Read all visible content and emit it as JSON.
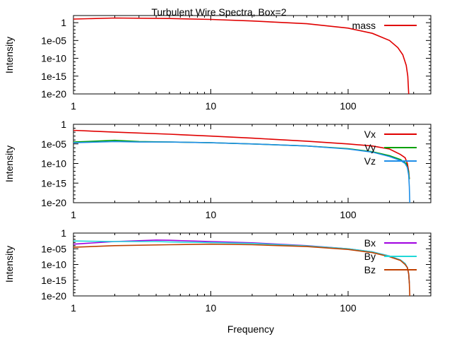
{
  "chart_data": [
    {
      "type": "line",
      "title": "Turbulent Wire Spectra, Box=2",
      "xlabel": "",
      "ylabel": "Intensity",
      "xscale": "log",
      "yscale": "log",
      "xlim": [
        1,
        400
      ],
      "ylim": [
        1e-20,
        100
      ],
      "xticks": [
        {
          "value": 1,
          "label": "1"
        },
        {
          "value": 10,
          "label": "10"
        },
        {
          "value": 100,
          "label": "100"
        }
      ],
      "yticks": [
        {
          "value": 1,
          "label": "1"
        },
        {
          "value": 1e-05,
          "label": "1e-05"
        },
        {
          "value": 1e-10,
          "label": "1e-10"
        },
        {
          "value": 1e-15,
          "label": "1e-15"
        },
        {
          "value": 1e-20,
          "label": "1e-20"
        }
      ],
      "legend_position": "top-right",
      "grid": false,
      "series": [
        {
          "name": "mass",
          "color": "#e00000",
          "points": [
            [
              1,
              10
            ],
            [
              2,
              20
            ],
            [
              5,
              15
            ],
            [
              10,
              8
            ],
            [
              20,
              3
            ],
            [
              50,
              0.5
            ],
            [
              100,
              0.03
            ],
            [
              150,
              0.001
            ],
            [
              200,
              1e-05
            ],
            [
              230,
              1e-07
            ],
            [
              250,
              1e-09
            ],
            [
              265,
              1e-12
            ],
            [
              272,
              1e-15
            ],
            [
              276,
              1e-20
            ]
          ]
        }
      ]
    },
    {
      "type": "line",
      "title": "",
      "xlabel": "",
      "ylabel": "Intensity",
      "xscale": "log",
      "yscale": "log",
      "xlim": [
        1,
        400
      ],
      "ylim": [
        1e-20,
        1
      ],
      "xticks": [
        {
          "value": 1,
          "label": "1"
        },
        {
          "value": 10,
          "label": "10"
        },
        {
          "value": 100,
          "label": "100"
        }
      ],
      "yticks": [
        {
          "value": 1,
          "label": "1"
        },
        {
          "value": 1e-05,
          "label": "1e-05"
        },
        {
          "value": 1e-10,
          "label": "1e-10"
        },
        {
          "value": 1e-15,
          "label": "1e-15"
        },
        {
          "value": 1e-20,
          "label": "1e-20"
        }
      ],
      "legend_position": "top-right",
      "grid": false,
      "series": [
        {
          "name": "Vx",
          "color": "#e00000",
          "points": [
            [
              1,
              0.03
            ],
            [
              2,
              0.01
            ],
            [
              5,
              0.003
            ],
            [
              10,
              0.001
            ],
            [
              20,
              0.0003
            ],
            [
              50,
              5e-05
            ],
            [
              100,
              1e-05
            ],
            [
              150,
              3e-06
            ],
            [
              200,
              5e-07
            ],
            [
              240,
              2e-08
            ],
            [
              260,
              3e-09
            ],
            [
              270,
              1e-10
            ],
            [
              276,
              1e-12
            ],
            [
              279,
              1e-14
            ]
          ]
        },
        {
          "name": "Vy",
          "color": "#00a000",
          "points": [
            [
              1,
              3e-05
            ],
            [
              2,
              8e-05
            ],
            [
              3,
              4e-05
            ],
            [
              5,
              3e-05
            ],
            [
              10,
              2e-05
            ],
            [
              20,
              1e-05
            ],
            [
              50,
              3e-06
            ],
            [
              100,
              6e-07
            ],
            [
              150,
              1e-07
            ],
            [
              200,
              1e-08
            ],
            [
              240,
              1e-09
            ],
            [
              265,
              1e-10
            ],
            [
              275,
              1e-12
            ],
            [
              279,
              1e-14
            ]
          ]
        },
        {
          "name": "Vz",
          "color": "#1e8ee8",
          "points": [
            [
              1,
              2e-05
            ],
            [
              2,
              4e-05
            ],
            [
              3,
              3e-05
            ],
            [
              5,
              3e-05
            ],
            [
              10,
              2e-05
            ],
            [
              20,
              1e-05
            ],
            [
              50,
              3e-06
            ],
            [
              100,
              5e-07
            ],
            [
              150,
              8e-08
            ],
            [
              200,
              6e-09
            ],
            [
              240,
              6e-10
            ],
            [
              260,
              1e-10
            ],
            [
              270,
              1e-11
            ],
            [
              276,
              1e-13
            ],
            [
              279,
              1e-16
            ],
            [
              281,
              1e-20
            ]
          ]
        }
      ]
    },
    {
      "type": "line",
      "title": "",
      "xlabel": "Frequency",
      "ylabel": "Intensity",
      "xscale": "log",
      "yscale": "log",
      "xlim": [
        1,
        400
      ],
      "ylim": [
        1e-20,
        1
      ],
      "xticks": [
        {
          "value": 1,
          "label": "1"
        },
        {
          "value": 10,
          "label": "10"
        },
        {
          "value": 100,
          "label": "100"
        }
      ],
      "yticks": [
        {
          "value": 1,
          "label": "1"
        },
        {
          "value": 1e-05,
          "label": "1e-05"
        },
        {
          "value": 1e-10,
          "label": "1e-10"
        },
        {
          "value": 1e-15,
          "label": "1e-15"
        },
        {
          "value": 1e-20,
          "label": "1e-20"
        }
      ],
      "legend_position": "top-right",
      "grid": false,
      "series": [
        {
          "name": "Bx",
          "color": "#a000e0",
          "points": [
            [
              1,
              0.0003
            ],
            [
              2,
              0.002
            ],
            [
              4,
              0.006
            ],
            [
              5,
              0.005
            ],
            [
              10,
              0.002
            ],
            [
              20,
              0.0008
            ],
            [
              50,
              0.0001
            ],
            [
              100,
              1e-05
            ],
            [
              150,
              1e-06
            ],
            [
              200,
              5e-08
            ],
            [
              240,
              3e-09
            ],
            [
              260,
              2e-10
            ],
            [
              270,
              1e-11
            ],
            [
              276,
              1e-13
            ],
            [
              279,
              1e-16
            ]
          ]
        },
        {
          "name": "By",
          "color": "#20d8d8",
          "points": [
            [
              1,
              0.003
            ],
            [
              2,
              0.002
            ],
            [
              4,
              0.002
            ],
            [
              5,
              0.0015
            ],
            [
              10,
              0.001
            ],
            [
              20,
              0.0005
            ],
            [
              50,
              8e-05
            ],
            [
              100,
              1e-05
            ],
            [
              150,
              1e-06
            ],
            [
              200,
              5e-08
            ],
            [
              240,
              3e-09
            ],
            [
              260,
              2e-10
            ],
            [
              270,
              1e-11
            ],
            [
              276,
              1e-13
            ],
            [
              279,
              1e-16
            ]
          ]
        },
        {
          "name": "Bz",
          "color": "#c04000",
          "points": [
            [
              1,
              3e-05
            ],
            [
              2,
              0.0001
            ],
            [
              5,
              0.0002
            ],
            [
              10,
              0.0003
            ],
            [
              20,
              0.0002
            ],
            [
              50,
              5e-05
            ],
            [
              100,
              6e-06
            ],
            [
              150,
              6e-07
            ],
            [
              200,
              3e-08
            ],
            [
              240,
              2e-09
            ],
            [
              260,
              1e-10
            ],
            [
              270,
              1e-11
            ],
            [
              276,
              1e-13
            ],
            [
              279,
              1e-16
            ],
            [
              281,
              1e-20
            ]
          ]
        }
      ]
    }
  ]
}
